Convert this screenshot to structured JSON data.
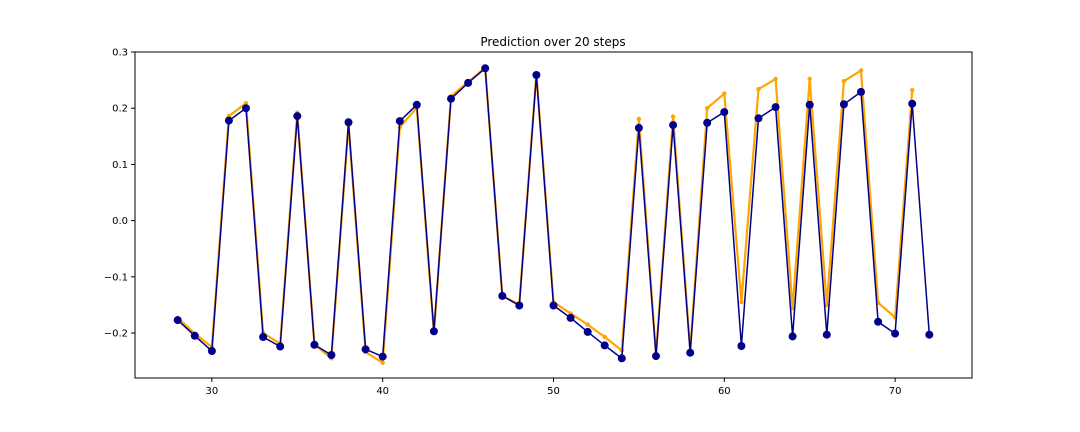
{
  "chart_data": {
    "type": "line",
    "title": "Prediction over 20 steps",
    "xlabel": "",
    "ylabel": "",
    "xlim": [
      25.5,
      74.5
    ],
    "ylim": [
      -0.28,
      0.3
    ],
    "xticks": [
      30,
      40,
      50,
      60,
      70
    ],
    "yticks": [
      -0.2,
      -0.1,
      0.0,
      0.1,
      0.2,
      0.3
    ],
    "xtick_labels": [
      "30",
      "40",
      "50",
      "60",
      "70"
    ],
    "ytick_labels": [
      "−0.2",
      "−0.1",
      "0.0",
      "0.1",
      "0.2",
      "0.3"
    ],
    "grid": false,
    "legend": "none",
    "colors": {
      "actual": "#00008b",
      "prediction": "#ffa500"
    },
    "series": [
      {
        "role": "actual",
        "x": [
          28,
          29,
          30,
          31,
          32,
          33,
          34,
          35,
          36,
          37,
          38,
          39,
          40,
          41,
          42,
          43,
          44,
          45,
          46,
          47,
          48,
          49,
          50,
          51,
          52,
          53,
          54,
          55,
          56,
          57,
          58,
          59,
          60,
          61,
          62,
          63,
          64,
          65,
          66,
          67,
          68,
          69,
          70,
          71,
          72
        ],
        "values": [
          -0.177,
          -0.205,
          -0.232,
          0.178,
          0.2,
          -0.207,
          -0.224,
          0.186,
          -0.221,
          -0.239,
          0.175,
          -0.229,
          -0.242,
          0.177,
          0.206,
          -0.197,
          0.217,
          0.245,
          0.271,
          -0.134,
          -0.151,
          0.259,
          -0.151,
          -0.173,
          -0.198,
          -0.222,
          -0.245,
          0.165,
          -0.241,
          0.17,
          -0.235,
          0.174,
          0.193,
          -0.223,
          0.182,
          0.202,
          -0.206,
          0.206,
          -0.203,
          0.207,
          0.229,
          -0.18,
          -0.201,
          0.208,
          -0.203
        ]
      },
      {
        "role": "prediction",
        "x": [
          28,
          29,
          30,
          31,
          32,
          33,
          34,
          35,
          36,
          37,
          38,
          39,
          40,
          41,
          42,
          43,
          44,
          45,
          46,
          47,
          48,
          49,
          50,
          51,
          52,
          53,
          54,
          55,
          56,
          57,
          58,
          59,
          60,
          61,
          62,
          63,
          64,
          65,
          66,
          67,
          68,
          69,
          70,
          71
        ],
        "values": [
          -0.173,
          -0.201,
          -0.225,
          0.186,
          0.209,
          -0.2,
          -0.219,
          0.192,
          -0.22,
          -0.245,
          0.17,
          -0.234,
          -0.253,
          0.166,
          0.201,
          -0.2,
          0.221,
          0.247,
          0.272,
          -0.134,
          -0.149,
          0.262,
          -0.145,
          -0.165,
          -0.185,
          -0.207,
          -0.231,
          0.181,
          -0.238,
          0.185,
          -0.231,
          0.2,
          0.226,
          -0.145,
          0.234,
          0.252,
          -0.156,
          0.252,
          -0.15,
          0.248,
          0.267,
          -0.146,
          -0.172,
          0.232
        ]
      }
    ]
  }
}
